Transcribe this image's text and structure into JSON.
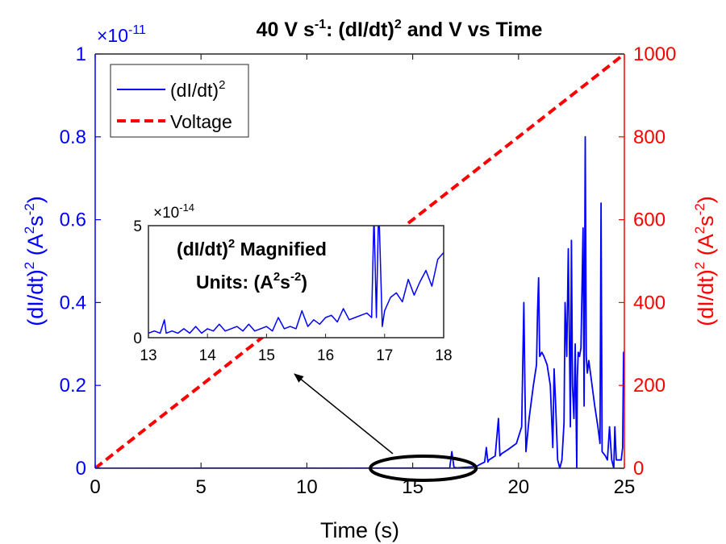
{
  "chart_data": {
    "type": "line",
    "title_parts": {
      "t1": "40 V s",
      "t1_sup": "-1",
      "t2": ": (dI/dt)",
      "t2_sup": "2",
      "t3": " and V vs Time"
    },
    "xlabel": "Time (s)",
    "ylabel_left_parts": {
      "a": "(dI/dt)",
      "a_sup": "2",
      "b": " (A",
      "b_sup": "2",
      "c": "s",
      "c_sup": "-2",
      "d": ")"
    },
    "ylabel_right_parts": {
      "a": "(dI/dt)",
      "a_sup": "2",
      "b": " (A",
      "b_sup": "2",
      "c": "s",
      "c_sup": "-2",
      "d": ")"
    },
    "left_exponent": {
      "base": "×10",
      "exp": "-11"
    },
    "xlim": [
      0,
      25
    ],
    "ylim_left": [
      0,
      1
    ],
    "ylim_right": [
      0,
      1000
    ],
    "x_ticks": [
      0,
      5,
      10,
      15,
      20,
      25
    ],
    "left_ticks": [
      0,
      0.2,
      0.4,
      0.6,
      0.8,
      1
    ],
    "left_tick_labels": [
      "0",
      "0.2",
      "0.4",
      "0.6",
      "0.8",
      "1"
    ],
    "right_ticks": [
      0,
      200,
      400,
      600,
      800,
      1000
    ],
    "right_tick_labels": [
      "0",
      "200",
      "400",
      "600",
      "800",
      "1000"
    ],
    "legend": {
      "position": "top-left",
      "entries": [
        {
          "label": "(dI/dt)",
          "sup": "2",
          "style": "solid-blue"
        },
        {
          "label": "Voltage",
          "style": "dashed-red"
        }
      ]
    },
    "series": [
      {
        "name": "Voltage",
        "axis": "right",
        "color": "#ff0000",
        "style": "dashed",
        "x": [
          0,
          25
        ],
        "y": [
          0,
          1000
        ]
      },
      {
        "name": "(dI/dt)^2",
        "axis": "left",
        "color": "#0000ff",
        "style": "solid",
        "x": [
          0,
          16.75,
          16.85,
          16.95,
          17.1,
          18.0,
          18.2,
          18.4,
          18.48,
          18.55,
          18.6,
          18.9,
          19.05,
          19.12,
          19.2,
          19.5,
          19.9,
          20.15,
          20.25,
          20.3,
          20.35,
          20.5,
          20.7,
          20.85,
          20.9,
          20.95,
          21.0,
          21.1,
          21.2,
          21.35,
          21.5,
          21.62,
          21.68,
          21.75,
          21.85,
          21.95,
          22.05,
          22.15,
          22.2,
          22.28,
          22.35,
          22.45,
          22.5,
          22.55,
          22.62,
          22.68,
          22.75,
          22.78,
          22.82,
          22.88,
          22.95,
          23.05,
          23.1,
          23.15,
          23.2,
          23.25,
          23.32,
          23.45,
          23.6,
          23.75,
          23.85,
          23.9,
          23.95,
          24.1,
          24.2,
          24.3,
          24.4,
          24.5,
          24.55,
          24.62,
          24.75,
          24.85,
          24.92,
          24.96,
          25.0
        ],
        "y": [
          0.0,
          0.0003,
          0.04,
          0.002,
          0.001,
          0.004,
          0.01,
          0.015,
          0.05,
          0.015,
          0.02,
          0.03,
          0.12,
          0.03,
          0.035,
          0.045,
          0.06,
          0.1,
          0.4,
          0.2,
          0.04,
          0.12,
          0.2,
          0.25,
          0.38,
          0.46,
          0.27,
          0.28,
          0.27,
          0.25,
          0.2,
          0.05,
          0.24,
          0.16,
          0.02,
          0.0,
          0.02,
          0.11,
          0.4,
          0.27,
          0.53,
          0.1,
          0.55,
          0.2,
          0.12,
          0.3,
          0.0,
          0.22,
          0.28,
          0.27,
          0.29,
          0.58,
          0.15,
          0.8,
          0.27,
          0.23,
          0.26,
          0.21,
          0.15,
          0.1,
          0.06,
          0.64,
          0.04,
          0.03,
          0.02,
          0.1,
          0.02,
          0.0,
          0.1,
          0.02,
          0.02,
          0.02,
          0.05,
          0.28,
          0.28
        ]
      }
    ],
    "annotation_ellipse": {
      "x_from": 13,
      "x_to": 18,
      "y_center": 0
    },
    "inset": {
      "label": "inset",
      "title_line1_parts": {
        "a": "(dI/dt)",
        "a_sup": "2",
        "b": " Magnified"
      },
      "title_line2_parts": {
        "a": "Units: (A",
        "a_sup": "2",
        "b": "s",
        "b_sup": "-2",
        "c": ")"
      },
      "exponent": {
        "base": "×10",
        "exp": "-14"
      },
      "xlim": [
        13,
        18
      ],
      "ylim": [
        0,
        5
      ],
      "x_ticks": [
        13,
        14,
        15,
        16,
        17,
        18
      ],
      "y_ticks": [
        0,
        5
      ],
      "y_tick_labels": [
        "0",
        "5"
      ],
      "series": {
        "x": [
          13.0,
          13.1,
          13.2,
          13.27,
          13.3,
          13.4,
          13.5,
          13.6,
          13.7,
          13.8,
          13.9,
          14.0,
          14.1,
          14.2,
          14.3,
          14.4,
          14.5,
          14.6,
          14.7,
          14.8,
          14.9,
          15.0,
          15.1,
          15.2,
          15.3,
          15.4,
          15.5,
          15.6,
          15.7,
          15.8,
          15.9,
          16.0,
          16.1,
          16.2,
          16.3,
          16.4,
          16.5,
          16.6,
          16.7,
          16.78,
          16.82,
          16.86,
          16.9,
          16.96,
          17.0,
          17.1,
          17.2,
          17.3,
          17.4,
          17.5,
          17.6,
          17.7,
          17.8,
          17.9,
          18.0
        ],
        "y": [
          0.2,
          0.3,
          0.2,
          0.8,
          0.2,
          0.3,
          0.2,
          0.4,
          0.2,
          0.5,
          0.2,
          0.4,
          0.3,
          0.6,
          0.3,
          0.4,
          0.5,
          0.3,
          0.6,
          0.3,
          0.4,
          0.5,
          0.3,
          0.9,
          0.4,
          0.5,
          0.4,
          1.2,
          0.5,
          0.8,
          0.6,
          0.9,
          1.0,
          0.7,
          1.3,
          0.8,
          0.9,
          1.0,
          1.1,
          0.9,
          5.5,
          0.9,
          6.0,
          0.5,
          1.2,
          1.8,
          2.0,
          1.6,
          2.6,
          1.9,
          2.5,
          3.0,
          2.3,
          3.5,
          3.8
        ]
      }
    }
  }
}
